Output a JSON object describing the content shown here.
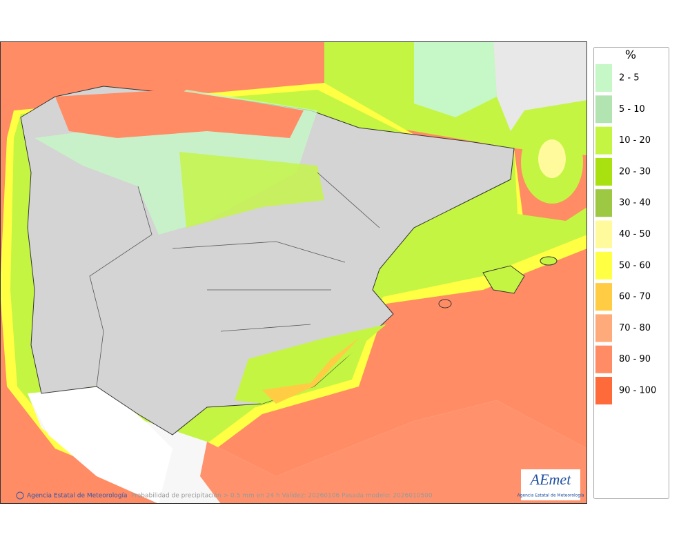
{
  "legend": {
    "title": "%",
    "items": [
      {
        "label": "2 - 5",
        "color": "#c6f7c6"
      },
      {
        "label": "5 - 10",
        "color": "#b2e4b2"
      },
      {
        "label": "10 - 20",
        "color": "#c4f542"
      },
      {
        "label": "20 - 30",
        "color": "#a8e010"
      },
      {
        "label": "30 - 40",
        "color": "#9cc843"
      },
      {
        "label": "40 - 50",
        "color": "#fffa9c"
      },
      {
        "label": "50 - 60",
        "color": "#ffff44"
      },
      {
        "label": "60 - 70",
        "color": "#ffcc44"
      },
      {
        "label": "70 - 80",
        "color": "#ffaa7a"
      },
      {
        "label": "80 - 90",
        "color": "#ff8c64"
      },
      {
        "label": "90 - 100",
        "color": "#ff6a3a"
      }
    ]
  },
  "credit": "Agencia Estatal de Meteorología",
  "caption": "Probabilidad de precipitación > 0.5 mm en 24 h Validez: 20260106 Pasada modelo: 2026010500",
  "logo": {
    "name": "AEmet",
    "subtitle": "Agencia Estatal de Meteorología"
  }
}
